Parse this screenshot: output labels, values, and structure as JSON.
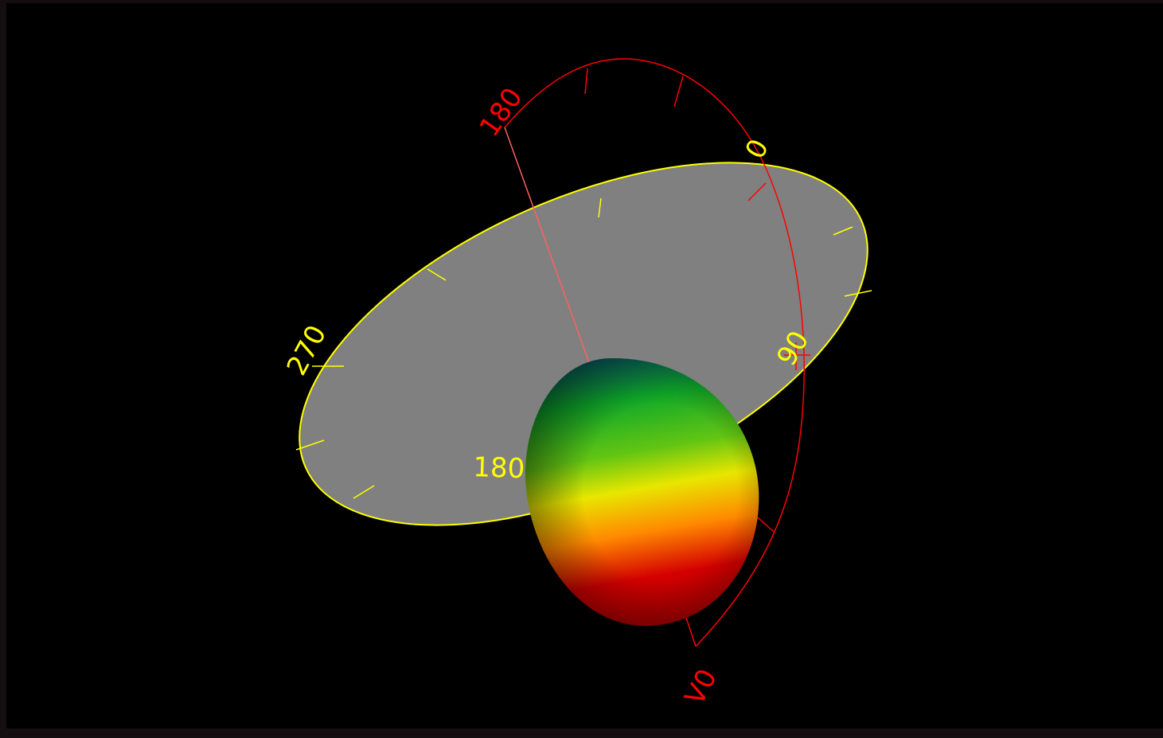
{
  "colors": {
    "background": "#000000",
    "border": "#140e10",
    "horizontal_plane_fill": "#808080",
    "horizontal_plane_outline": "#ffff00",
    "vertical_arc": "#ff0000",
    "pattern_top": "#08596b",
    "pattern_green": "#0ea829",
    "pattern_yellow": "#e8e600",
    "pattern_orange": "#ff8a00",
    "pattern_red": "#d40000"
  },
  "horizontal_plane": {
    "labels": {
      "azimuth_0": "0",
      "azimuth_90": "90",
      "azimuth_180": "180",
      "azimuth_270": "270"
    }
  },
  "vertical_plane": {
    "labels": {
      "elevation_180": "180",
      "elevation_v0": "V0"
    }
  }
}
